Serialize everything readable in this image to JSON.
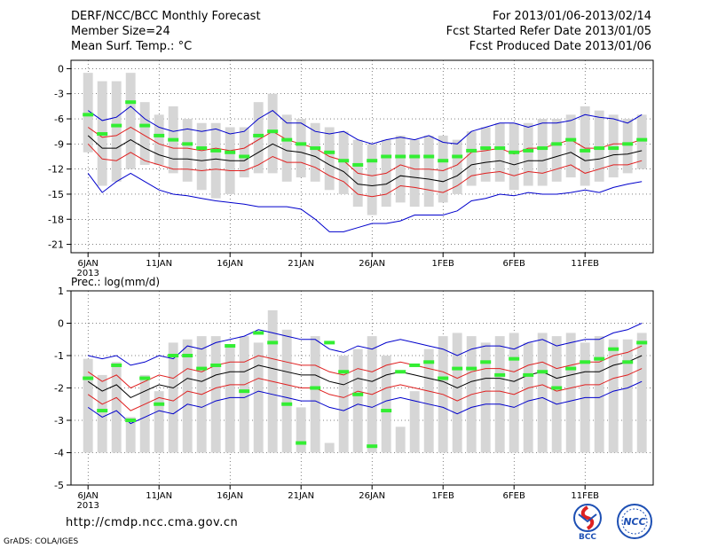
{
  "header": {
    "title": "DERF/NCC/BCC Monthly Forecast",
    "member_size": "Member Size=24",
    "variable": "Mean Surf. Temp.: °C",
    "forecast_period": "For 2013/01/06-2013/02/14",
    "started_date": "Fcst Started Refer Date 2013/01/05",
    "produced_date": "Fcst Produced Date 2013/01/06"
  },
  "footer": {
    "url": "http://cmdp.ncc.cma.gov.cn",
    "grads": "GrADS: COLA/IGES",
    "logo_bcc": "BCC",
    "logo_ncc": "NCC"
  },
  "colors": {
    "box": "#d6d6d6",
    "ensemble_mean": "#000000",
    "spread_red": "#e02020",
    "envelope_blue": "#0000cc",
    "marker": "#33ee33",
    "axis": "#000000"
  },
  "chart_data": [
    {
      "type": "line",
      "title": "Mean Surf. Temp.: °C",
      "year_label": "2013",
      "x_ticks": [
        "6JAN",
        "11JAN",
        "16JAN",
        "21JAN",
        "26JAN",
        "1FEB",
        "6FEB",
        "11FEB"
      ],
      "ylim": [
        -22,
        1
      ],
      "y_ticks": [
        0,
        -3,
        -6,
        -9,
        -12,
        -15,
        -18,
        -21
      ],
      "days": 40,
      "series": [
        {
          "name": "max",
          "color": "blue",
          "values": [
            -5.0,
            -6.2,
            -5.8,
            -4.5,
            -6.0,
            -7.0,
            -7.5,
            -7.2,
            -7.5,
            -7.2,
            -7.8,
            -7.5,
            -6.0,
            -5.0,
            -6.5,
            -6.5,
            -7.5,
            -7.8,
            -7.5,
            -8.5,
            -9.0,
            -8.5,
            -8.2,
            -8.5,
            -8.0,
            -8.8,
            -9.0,
            -7.5,
            -7.0,
            -6.5,
            -6.5,
            -7.0,
            -6.5,
            -6.5,
            -6.2,
            -5.5,
            -5.8,
            -6.0,
            -6.5,
            -5.5
          ]
        },
        {
          "name": "upper",
          "color": "red",
          "values": [
            -7.0,
            -8.2,
            -8.0,
            -7.0,
            -8.0,
            -9.0,
            -9.5,
            -9.5,
            -9.8,
            -9.5,
            -9.8,
            -9.5,
            -8.5,
            -7.5,
            -8.5,
            -9.0,
            -9.5,
            -10.5,
            -11.0,
            -12.5,
            -12.8,
            -12.5,
            -11.5,
            -12.0,
            -12.0,
            -12.2,
            -11.5,
            -10.0,
            -9.8,
            -9.5,
            -10.2,
            -9.5,
            -9.5,
            -9.0,
            -8.5,
            -9.5,
            -9.5,
            -9.0,
            -9.0,
            -8.5
          ]
        },
        {
          "name": "mean",
          "color": "black",
          "values": [
            -8.0,
            -9.5,
            -9.5,
            -8.5,
            -9.5,
            -10.3,
            -10.8,
            -10.8,
            -11.0,
            -10.8,
            -11.0,
            -11.0,
            -10.0,
            -9.0,
            -9.8,
            -10.0,
            -10.5,
            -11.5,
            -12.3,
            -13.8,
            -14.0,
            -13.8,
            -12.8,
            -13.0,
            -13.2,
            -13.5,
            -12.8,
            -11.5,
            -11.2,
            -11.0,
            -11.5,
            -11.0,
            -11.0,
            -10.5,
            -10.0,
            -11.0,
            -10.8,
            -10.3,
            -10.2,
            -9.8
          ]
        },
        {
          "name": "lower",
          "color": "red",
          "values": [
            -9.0,
            -10.8,
            -11.0,
            -10.0,
            -11.0,
            -11.5,
            -12.0,
            -12.0,
            -12.2,
            -12.0,
            -12.2,
            -12.2,
            -11.5,
            -10.5,
            -11.2,
            -11.2,
            -11.8,
            -12.8,
            -13.5,
            -15.0,
            -15.3,
            -15.0,
            -14.0,
            -14.2,
            -14.5,
            -14.8,
            -14.0,
            -12.8,
            -12.5,
            -12.3,
            -12.8,
            -12.3,
            -12.5,
            -12.0,
            -11.5,
            -12.5,
            -12.0,
            -11.5,
            -11.5,
            -11.0
          ]
        },
        {
          "name": "min",
          "color": "blue",
          "values": [
            -12.5,
            -14.8,
            -13.5,
            -12.5,
            -13.5,
            -14.5,
            -15.0,
            -15.2,
            -15.5,
            -15.8,
            -16.0,
            -16.2,
            -16.5,
            -16.5,
            -16.5,
            -16.8,
            -18.0,
            -19.5,
            -19.5,
            -19.0,
            -18.5,
            -18.5,
            -18.2,
            -17.5,
            -17.5,
            -17.5,
            -17.0,
            -15.8,
            -15.5,
            -15.0,
            -15.2,
            -14.8,
            -15.0,
            -15.0,
            -14.8,
            -14.5,
            -14.8,
            -14.2,
            -13.8,
            -13.5
          ]
        }
      ],
      "boxes": {
        "top": [
          -0.5,
          -1.5,
          -1.5,
          -0.5,
          -4.0,
          -5.5,
          -4.5,
          -6.0,
          -6.5,
          -6.5,
          -7.0,
          -7.0,
          -4.0,
          -3.0,
          -5.5,
          -6.0,
          -6.5,
          -7.0,
          -7.5,
          -8.5,
          -9.0,
          -8.5,
          -8.0,
          -8.5,
          -8.0,
          -8.0,
          -8.5,
          -7.5,
          -7.0,
          -6.5,
          -6.5,
          -6.5,
          -6.0,
          -6.0,
          -5.5,
          -4.5,
          -5.0,
          -5.5,
          -6.0,
          -5.5
        ],
        "bottom": [
          -10.0,
          -14.0,
          -13.5,
          -12.0,
          -11.5,
          -11.5,
          -12.5,
          -13.5,
          -14.5,
          -15.5,
          -15.0,
          -13.0,
          -12.5,
          -12.5,
          -13.5,
          -13.0,
          -13.5,
          -14.5,
          -15.0,
          -16.5,
          -17.5,
          -16.5,
          -16.0,
          -16.5,
          -16.5,
          -16.0,
          -15.0,
          -14.0,
          -13.5,
          -13.5,
          -14.5,
          -14.0,
          -14.0,
          -13.5,
          -13.0,
          -14.0,
          -13.5,
          -13.0,
          -12.5,
          -12.0
        ]
      },
      "markers": [
        -5.5,
        -7.8,
        -6.8,
        -4.0,
        -6.8,
        -8.0,
        -8.5,
        -9.0,
        -9.5,
        -9.8,
        -10.0,
        -10.5,
        -8.0,
        -7.5,
        -8.5,
        -9.0,
        -9.5,
        -10.0,
        -11.0,
        -11.5,
        -11.0,
        -10.5,
        -10.5,
        -10.5,
        -10.5,
        -11.0,
        -10.5,
        -9.8,
        -9.5,
        -9.5,
        -10.0,
        -9.8,
        -9.5,
        -9.0,
        -8.5,
        -9.8,
        -9.5,
        -9.5,
        -9.0,
        -8.5
      ]
    },
    {
      "type": "line",
      "title": "Prec.: log(mm/d)",
      "year_label": "2013",
      "x_ticks": [
        "6JAN",
        "11JAN",
        "16JAN",
        "21JAN",
        "26JAN",
        "1FEB",
        "6FEB",
        "11FEB"
      ],
      "ylim": [
        -5,
        1
      ],
      "y_ticks": [
        1,
        0,
        -1,
        -2,
        -3,
        -4,
        -5
      ],
      "days": 40,
      "series": [
        {
          "name": "max",
          "color": "blue",
          "values": [
            -1.0,
            -1.1,
            -1.0,
            -1.3,
            -1.2,
            -1.0,
            -1.1,
            -0.7,
            -0.8,
            -0.6,
            -0.5,
            -0.4,
            -0.2,
            -0.3,
            -0.4,
            -0.5,
            -0.5,
            -0.8,
            -0.9,
            -0.7,
            -0.8,
            -0.6,
            -0.5,
            -0.6,
            -0.7,
            -0.8,
            -1.0,
            -0.8,
            -0.7,
            -0.7,
            -0.8,
            -0.6,
            -0.5,
            -0.7,
            -0.6,
            -0.5,
            -0.5,
            -0.3,
            -0.2,
            0.0
          ]
        },
        {
          "name": "upper",
          "color": "red",
          "values": [
            -1.5,
            -1.8,
            -1.6,
            -2.0,
            -1.8,
            -1.6,
            -1.7,
            -1.4,
            -1.5,
            -1.3,
            -1.2,
            -1.2,
            -1.0,
            -1.1,
            -1.2,
            -1.3,
            -1.3,
            -1.5,
            -1.6,
            -1.4,
            -1.5,
            -1.3,
            -1.2,
            -1.3,
            -1.4,
            -1.5,
            -1.7,
            -1.5,
            -1.4,
            -1.4,
            -1.5,
            -1.3,
            -1.2,
            -1.4,
            -1.3,
            -1.2,
            -1.2,
            -1.0,
            -0.9,
            -0.7
          ]
        },
        {
          "name": "mean",
          "color": "black",
          "values": [
            -1.8,
            -2.1,
            -1.9,
            -2.3,
            -2.1,
            -1.9,
            -2.0,
            -1.7,
            -1.8,
            -1.6,
            -1.5,
            -1.5,
            -1.3,
            -1.4,
            -1.5,
            -1.6,
            -1.6,
            -1.8,
            -1.9,
            -1.7,
            -1.8,
            -1.6,
            -1.5,
            -1.6,
            -1.7,
            -1.8,
            -2.0,
            -1.8,
            -1.7,
            -1.7,
            -1.8,
            -1.6,
            -1.5,
            -1.7,
            -1.6,
            -1.5,
            -1.5,
            -1.3,
            -1.2,
            -1.0
          ]
        },
        {
          "name": "lower",
          "color": "red",
          "values": [
            -2.2,
            -2.5,
            -2.3,
            -2.7,
            -2.5,
            -2.3,
            -2.4,
            -2.1,
            -2.2,
            -2.0,
            -1.9,
            -1.9,
            -1.7,
            -1.8,
            -1.9,
            -2.0,
            -2.0,
            -2.2,
            -2.3,
            -2.1,
            -2.2,
            -2.0,
            -1.9,
            -2.0,
            -2.1,
            -2.2,
            -2.4,
            -2.2,
            -2.1,
            -2.1,
            -2.2,
            -2.0,
            -1.9,
            -2.1,
            -2.0,
            -1.9,
            -1.9,
            -1.7,
            -1.6,
            -1.4
          ]
        },
        {
          "name": "min",
          "color": "blue",
          "values": [
            -2.6,
            -2.9,
            -2.7,
            -3.1,
            -2.9,
            -2.7,
            -2.8,
            -2.5,
            -2.6,
            -2.4,
            -2.3,
            -2.3,
            -2.1,
            -2.2,
            -2.3,
            -2.4,
            -2.4,
            -2.6,
            -2.7,
            -2.5,
            -2.6,
            -2.4,
            -2.3,
            -2.4,
            -2.5,
            -2.6,
            -2.8,
            -2.6,
            -2.5,
            -2.5,
            -2.6,
            -2.4,
            -2.3,
            -2.5,
            -2.4,
            -2.3,
            -2.3,
            -2.1,
            -2.0,
            -1.8
          ]
        }
      ],
      "boxes": {
        "top": [
          -1.1,
          -1.6,
          -1.2,
          -2.9,
          -1.6,
          -2.1,
          -0.6,
          -0.5,
          -0.4,
          -0.4,
          -0.7,
          -0.4,
          -0.6,
          0.4,
          -0.2,
          -2.6,
          -0.4,
          -3.7,
          -1.0,
          -0.8,
          -0.4,
          -1.0,
          -3.2,
          -2.1,
          -0.8,
          -0.4,
          -0.3,
          -0.4,
          -0.6,
          -0.4,
          -0.3,
          -0.6,
          -0.3,
          -0.4,
          -0.3,
          -0.6,
          -0.4,
          -0.5,
          -0.5,
          -0.3
        ],
        "bottom": [
          -4,
          -4,
          -4,
          -4,
          -4,
          -4,
          -4,
          -4,
          -4,
          -4,
          -4,
          -4,
          -4,
          -4,
          -4,
          -4,
          -4,
          -4,
          -4,
          -4,
          -4,
          -4,
          -4,
          -4,
          -4,
          -4,
          -4,
          -4,
          -4,
          -4,
          -4,
          -4,
          -4,
          -4,
          -4,
          -4,
          -4,
          -4,
          -4,
          -4
        ]
      },
      "markers": [
        -1.7,
        -2.7,
        -1.3,
        -3.0,
        -1.7,
        -2.5,
        -1.0,
        -1.0,
        -1.4,
        -1.3,
        -0.7,
        -2.1,
        -0.3,
        -0.6,
        -2.5,
        -3.7,
        -2.0,
        -0.6,
        -1.5,
        -2.2,
        -3.8,
        -2.7,
        -1.5,
        -1.3,
        -1.2,
        -1.7,
        -1.4,
        -1.4,
        -1.2,
        -1.6,
        -1.1,
        -1.6,
        -1.5,
        -2.0,
        -1.4,
        -1.2,
        -1.1,
        -0.8,
        -1.2,
        -0.6
      ]
    }
  ]
}
